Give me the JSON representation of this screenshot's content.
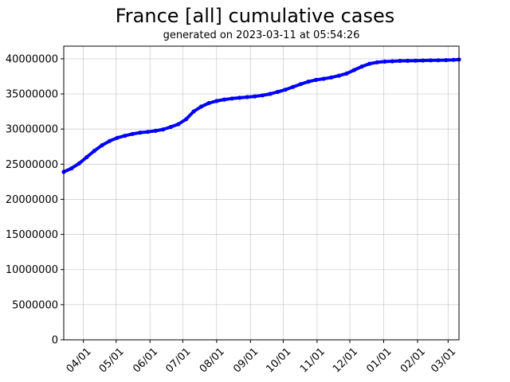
{
  "chart_data": {
    "type": "line",
    "title": "France [all] cumulative cases",
    "subtitle": "generated on 2023-03-11 at 05:54:26",
    "xlabel": "",
    "ylabel": "",
    "x_tick_labels": [
      "04/01",
      "05/01",
      "06/01",
      "07/01",
      "08/01",
      "09/01",
      "10/01",
      "11/01",
      "12/01",
      "01/01",
      "02/01",
      "03/01"
    ],
    "y_tick_labels": [
      "0",
      "5000000",
      "10000000",
      "15000000",
      "20000000",
      "25000000",
      "30000000",
      "35000000",
      "40000000"
    ],
    "ylim": [
      0,
      41800000
    ],
    "xlim": [
      "2022-03-14",
      "2023-03-11"
    ],
    "grid": true,
    "series_color": "#0000ff",
    "series": [
      {
        "x": [
          "2022-03-14",
          "2022-03-21",
          "2022-03-28",
          "2022-04-04",
          "2022-04-11",
          "2022-04-18",
          "2022-04-25",
          "2022-05-02",
          "2022-05-09",
          "2022-05-16",
          "2022-05-23",
          "2022-05-30",
          "2022-06-06",
          "2022-06-13",
          "2022-06-20",
          "2022-06-27",
          "2022-07-04",
          "2022-07-11",
          "2022-07-18",
          "2022-07-25",
          "2022-08-01",
          "2022-08-08",
          "2022-08-15",
          "2022-08-22",
          "2022-08-29",
          "2022-09-05",
          "2022-09-12",
          "2022-09-19",
          "2022-09-26",
          "2022-10-03",
          "2022-10-10",
          "2022-10-17",
          "2022-10-24",
          "2022-10-31",
          "2022-11-07",
          "2022-11-14",
          "2022-11-21",
          "2022-11-28",
          "2022-12-05",
          "2022-12-12",
          "2022-12-19",
          "2022-12-26",
          "2023-01-02",
          "2023-01-09",
          "2023-01-16",
          "2023-01-23",
          "2023-01-30",
          "2023-02-06",
          "2023-02-13",
          "2023-02-20",
          "2023-02-27",
          "2023-03-06",
          "2023-03-11"
        ],
        "values": [
          23900000,
          24400000,
          25100000,
          26000000,
          26900000,
          27700000,
          28300000,
          28750000,
          29050000,
          29300000,
          29500000,
          29600000,
          29750000,
          29950000,
          30300000,
          30700000,
          31400000,
          32500000,
          33200000,
          33700000,
          34000000,
          34200000,
          34350000,
          34450000,
          34550000,
          34650000,
          34800000,
          35000000,
          35300000,
          35600000,
          36000000,
          36400000,
          36750000,
          37000000,
          37150000,
          37350000,
          37600000,
          37900000,
          38400000,
          38900000,
          39300000,
          39500000,
          39600000,
          39650000,
          39700000,
          39720000,
          39740000,
          39760000,
          39780000,
          39800000,
          39820000,
          39850000,
          39900000
        ]
      }
    ]
  }
}
